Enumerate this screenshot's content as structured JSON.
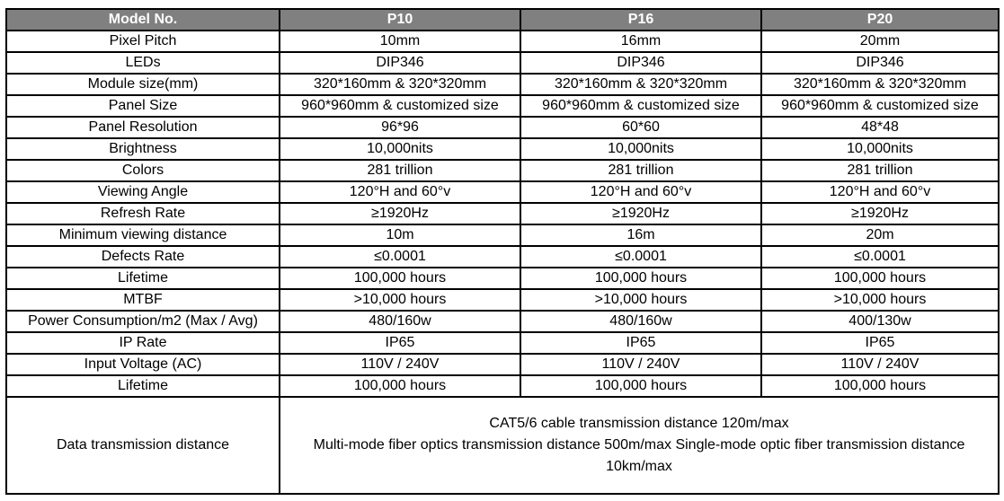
{
  "table": {
    "header": {
      "label": "Model No.",
      "columns": [
        "P10",
        "P16",
        "P20"
      ]
    },
    "rows": [
      {
        "label": "Pixel Pitch",
        "values": [
          "10mm",
          "16mm",
          "20mm"
        ]
      },
      {
        "label": "LEDs",
        "values": [
          "DIP346",
          "DIP346",
          "DIP346"
        ]
      },
      {
        "label": "Module size(mm)",
        "values": [
          "320*160mm & 320*320mm",
          "320*160mm & 320*320mm",
          "320*160mm & 320*320mm"
        ]
      },
      {
        "label": "Panel Size",
        "values": [
          "960*960mm & customized size",
          "960*960mm & customized size",
          "960*960mm & customized size"
        ]
      },
      {
        "label": "Panel Resolution",
        "values": [
          "96*96",
          "60*60",
          "48*48"
        ]
      },
      {
        "label": "Brightness",
        "values": [
          "10,000nits",
          "10,000nits",
          "10,000nits"
        ]
      },
      {
        "label": "Colors",
        "values": [
          "281 trillion",
          "281 trillion",
          "281 trillion"
        ]
      },
      {
        "label": "Viewing Angle",
        "values": [
          "120°H and 60°v",
          "120°H and 60°v",
          "120°H and 60°v"
        ]
      },
      {
        "label": "Refresh Rate",
        "values": [
          "≥1920Hz",
          "≥1920Hz",
          "≥1920Hz"
        ]
      },
      {
        "label": "Minimum viewing distance",
        "values": [
          "10m",
          "16m",
          "20m"
        ]
      },
      {
        "label": "Defects Rate",
        "values": [
          "≤0.0001",
          "≤0.0001",
          "≤0.0001"
        ]
      },
      {
        "label": "Lifetime",
        "values": [
          "100,000 hours",
          "100,000 hours",
          "100,000 hours"
        ]
      },
      {
        "label": "MTBF",
        "values": [
          ">10,000 hours",
          ">10,000 hours",
          ">10,000 hours"
        ]
      },
      {
        "label": "Power Consumption/m2 (Max / Avg)",
        "values": [
          "480/160w",
          "480/160w",
          "400/130w"
        ]
      },
      {
        "label": "IP Rate",
        "values": [
          "IP65",
          "IP65",
          "IP65"
        ]
      },
      {
        "label": "Input Voltage (AC)",
        "values": [
          "110V / 240V",
          "110V / 240V",
          "110V / 240V"
        ]
      },
      {
        "label": "Lifetime",
        "values": [
          "100,000 hours",
          "100,000 hours",
          "100,000 hours"
        ]
      }
    ],
    "footer": {
      "label": "Data transmission distance",
      "lines": [
        "CAT5/6 cable transmission distance 120m/max",
        "Multi-mode fiber optics transmission distance 500m/max Single-mode optic fiber transmission distance 10km/max"
      ]
    }
  },
  "colors": {
    "header_bg": "#808080",
    "header_text": "#ffffff",
    "border": "#000000",
    "body_text": "#000000"
  }
}
